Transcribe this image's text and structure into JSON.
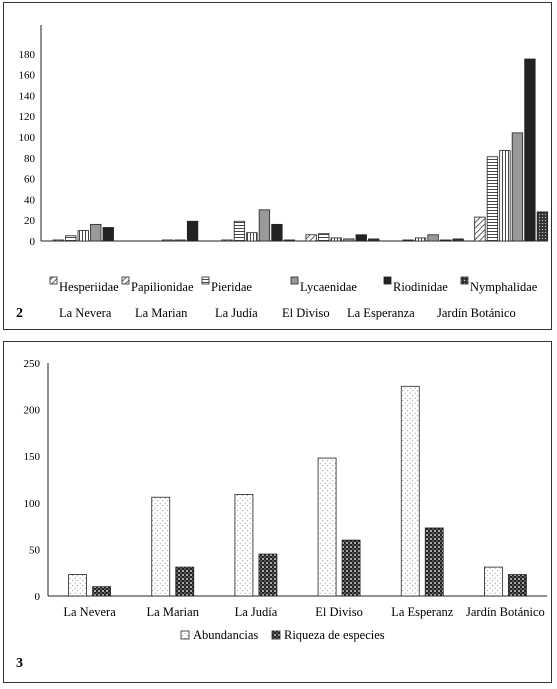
{
  "figure2": {
    "number": "2",
    "legend": [
      "Hesperiidae",
      "Papilionidae",
      "Pieridae",
      "Lycaenidae",
      "Riodinidae",
      "Nymphalidae"
    ],
    "sites": [
      "La Nevera",
      "La Marian",
      "La Judía",
      "El Diviso",
      "La Esperanza",
      "Jardín Botánico"
    ]
  },
  "figure3": {
    "number": "3",
    "legend": [
      "Abundancias",
      "Riqueza de especies"
    ]
  },
  "chart_data": [
    {
      "type": "bar",
      "categories": [
        "La Nevera",
        "La Marian",
        "La Judía",
        "El Diviso",
        "La Esperanza",
        "Jardín Botánico"
      ],
      "series": [
        {
          "name": "Hesperiidae",
          "values": [
            1,
            0,
            1,
            6,
            0,
            23
          ]
        },
        {
          "name": "Papilionidae",
          "values": [
            5,
            0,
            19,
            7,
            1,
            81
          ]
        },
        {
          "name": "Pieridae",
          "values": [
            10,
            1,
            8,
            3,
            3,
            87
          ]
        },
        {
          "name": "Lycaenidae",
          "values": [
            16,
            1,
            30,
            2,
            6,
            104
          ]
        },
        {
          "name": "Riodinidae",
          "values": [
            13,
            19,
            16,
            6,
            1,
            175
          ]
        },
        {
          "name": "Nymphalidae",
          "values": [
            0,
            0,
            1,
            2,
            2,
            28
          ]
        }
      ],
      "yticks": [
        0,
        20,
        40,
        60,
        80,
        100,
        120,
        140,
        160,
        180
      ],
      "ylim": [
        0,
        200
      ],
      "grid": false,
      "legend_position": "bottom",
      "xlabel": "",
      "ylabel": "",
      "title": ""
    },
    {
      "type": "bar",
      "categories": [
        "La Nevera",
        "La Marian",
        "La Judía",
        "El Diviso",
        "La Esperanz",
        "Jardín Botánico"
      ],
      "series": [
        {
          "name": "Abundancias",
          "values": [
            23,
            106,
            109,
            148,
            225,
            31
          ]
        },
        {
          "name": "Riqueza de especies",
          "values": [
            10,
            31,
            45,
            60,
            73,
            23
          ]
        }
      ],
      "yticks": [
        0,
        50,
        100,
        150,
        200,
        250
      ],
      "ylim": [
        0,
        250
      ],
      "grid": false,
      "legend_position": "bottom",
      "xlabel": "",
      "ylabel": "",
      "title": ""
    }
  ],
  "colors": {
    "frame": "#333333",
    "bar_stroke": "#222222",
    "solid_fill": "#222222",
    "grey_fill": "#999999"
  }
}
